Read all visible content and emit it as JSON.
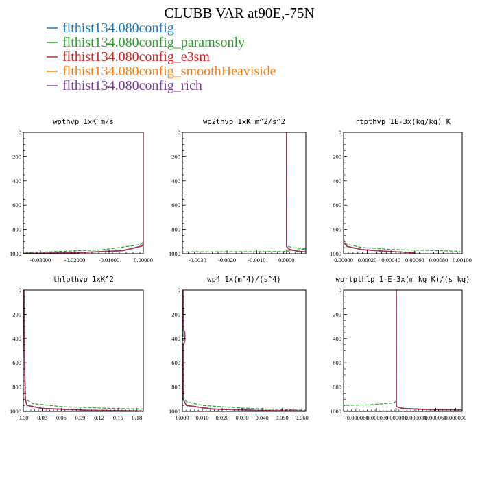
{
  "figure": {
    "title": "CLUBB VAR at90E,-75N"
  },
  "legend": [
    {
      "label": "flthist134.080config",
      "color": "#1f77b4",
      "dash": "solid"
    },
    {
      "label": "flthist134.080config_paramsonly",
      "color": "#2ca02c",
      "dash": "dashed"
    },
    {
      "label": "flthist134.080config_e3sm",
      "color": "#d62728",
      "dash": "solid"
    },
    {
      "label": "flthist134.080config_smoothHeaviside",
      "color": "#ff7f0e",
      "dash": "dashed"
    },
    {
      "label": "flthist134.080config_rich",
      "color": "#7b3f9e",
      "dash": "dotted"
    }
  ],
  "chart_data": [
    {
      "type": "line",
      "title": "wpthvp  1xK m/s",
      "xlim": [
        -0.035,
        0.0
      ],
      "ylim": [
        1000,
        0
      ],
      "xticks": [
        -0.03,
        -0.02,
        -0.01,
        0.0
      ],
      "xtick_labels": [
        "-0.03000",
        "-0.02000",
        "-0.01000",
        "0.00000"
      ],
      "yticks": [
        0,
        200,
        400,
        600,
        800,
        1000
      ],
      "ytick_labels": [
        "0",
        "200",
        "400",
        "600",
        "800",
        "1000"
      ],
      "series": [
        {
          "points": [
            [
              0,
              0
            ],
            [
              0,
              900
            ],
            [
              -0.0002,
              935
            ],
            [
              -0.006,
              975
            ],
            [
              -0.02,
              992
            ],
            [
              -0.035,
              998
            ]
          ]
        },
        {
          "points": [
            [
              0,
              0
            ],
            [
              0,
              900
            ],
            [
              -0.0008,
              925
            ],
            [
              -0.012,
              968
            ],
            [
              -0.028,
              985
            ],
            [
              -0.035,
              990
            ]
          ]
        },
        {
          "points": [
            [
              0,
              0
            ],
            [
              0,
              900
            ],
            [
              -0.0002,
              935
            ],
            [
              -0.006,
              975
            ],
            [
              -0.02,
              992
            ],
            [
              -0.035,
              998
            ]
          ]
        },
        {
          "points": [
            [
              0,
              0
            ],
            [
              0,
              900
            ],
            [
              -0.0002,
              935
            ],
            [
              -0.006,
              975
            ],
            [
              -0.02,
              992
            ],
            [
              -0.035,
              998
            ]
          ]
        },
        {
          "points": [
            [
              0,
              0
            ],
            [
              0,
              900
            ],
            [
              -0.0002,
              935
            ],
            [
              -0.006,
              975
            ],
            [
              -0.02,
              992
            ],
            [
              -0.035,
              998
            ]
          ]
        }
      ]
    },
    {
      "type": "line",
      "title": "wp2thvp  1xK m^2/s^2",
      "xlim": [
        -0.0035,
        0.00065
      ],
      "ylim": [
        1000,
        0
      ],
      "xticks": [
        -0.003,
        -0.002,
        -0.001,
        0.0
      ],
      "xtick_labels": [
        "-0.0030",
        "-0.0020",
        "-0.0010",
        "0.0000"
      ],
      "yticks": [
        0,
        200,
        400,
        600,
        800,
        1000
      ],
      "ytick_labels": [
        "0",
        "200",
        "400",
        "600",
        "800",
        "1000"
      ],
      "series": [
        {
          "points": [
            [
              0,
              0
            ],
            [
              0,
              940
            ],
            [
              0.0001,
              965
            ],
            [
              0.0004,
              980
            ],
            [
              0.00065,
              985
            ]
          ]
        },
        {
          "points": [
            [
              0,
              0
            ],
            [
              0,
              935
            ],
            [
              0.0002,
              950
            ],
            [
              0.00065,
              960
            ],
            [
              -0.0001,
              982
            ],
            [
              -0.0035,
              985
            ]
          ]
        },
        {
          "points": [
            [
              0,
              0
            ],
            [
              0,
              940
            ],
            [
              0.0001,
              965
            ],
            [
              0.0004,
              980
            ],
            [
              0.00065,
              985
            ]
          ]
        },
        {
          "points": [
            [
              0,
              0
            ],
            [
              0,
              940
            ],
            [
              0.0001,
              965
            ],
            [
              0.0004,
              980
            ],
            [
              0.00065,
              985
            ]
          ]
        },
        {
          "points": [
            [
              0,
              0
            ],
            [
              0,
              940
            ],
            [
              0.0001,
              965
            ],
            [
              0.0004,
              980
            ],
            [
              0.00065,
              985
            ]
          ]
        }
      ]
    },
    {
      "type": "line",
      "title": "rtpthvp  1E-3x(kg/kg) K",
      "xlim": [
        0.0,
        0.001
      ],
      "ylim": [
        1000,
        0
      ],
      "xticks": [
        0.0,
        0.0002,
        0.0004,
        0.0006,
        0.0008,
        0.001
      ],
      "xtick_labels": [
        "0.00000",
        "0.00020",
        "0.00040",
        "0.00060",
        "0.00080",
        "0.00100"
      ],
      "yticks": [
        0,
        200,
        400,
        600,
        800,
        1000
      ],
      "ytick_labels": [
        "0",
        "200",
        "400",
        "600",
        "800",
        "1000"
      ],
      "series": [
        {
          "points": [
            [
              0,
              0
            ],
            [
              0,
              910
            ],
            [
              3e-05,
              940
            ],
            [
              0.00015,
              965
            ],
            [
              0.00035,
              980
            ],
            [
              0.0006,
              992
            ]
          ]
        },
        {
          "points": [
            [
              0,
              0
            ],
            [
              0,
              880
            ],
            [
              2e-05,
              920
            ],
            [
              0.00015,
              948
            ],
            [
              0.0004,
              965
            ],
            [
              0.0008,
              975
            ],
            [
              0.00098,
              980
            ]
          ]
        },
        {
          "points": [
            [
              0,
              0
            ],
            [
              0,
              910
            ],
            [
              3e-05,
              940
            ],
            [
              0.00015,
              965
            ],
            [
              0.00035,
              980
            ],
            [
              0.0006,
              992
            ]
          ]
        },
        {
          "points": [
            [
              0,
              0
            ],
            [
              0,
              910
            ],
            [
              3e-05,
              940
            ],
            [
              0.00015,
              965
            ],
            [
              0.00035,
              980
            ],
            [
              0.0006,
              992
            ]
          ]
        },
        {
          "points": [
            [
              0,
              0
            ],
            [
              0,
              910
            ],
            [
              3e-05,
              940
            ],
            [
              0.00015,
              965
            ],
            [
              0.00035,
              980
            ],
            [
              0.0006,
              992
            ]
          ]
        }
      ]
    },
    {
      "type": "line",
      "title": "thlpthvp  1xK^2",
      "xlim": [
        0.0,
        0.19
      ],
      "ylim": [
        1000,
        0
      ],
      "xticks": [
        0.0,
        0.03,
        0.06,
        0.09,
        0.12,
        0.15,
        0.18
      ],
      "xtick_labels": [
        "0.00",
        "0.03",
        "0.06",
        "0.09",
        "0.12",
        "0.15",
        "0.18"
      ],
      "yticks": [
        0,
        200,
        400,
        600,
        800,
        1000
      ],
      "ytick_labels": [
        "0",
        "200",
        "400",
        "600",
        "800",
        "1000"
      ],
      "series": [
        {
          "points": [
            [
              0.001,
              0
            ],
            [
              0.002,
              600
            ],
            [
              0.003,
              900
            ],
            [
              0.006,
              950
            ],
            [
              0.03,
              975
            ],
            [
              0.1,
              990
            ],
            [
              0.19,
              997
            ]
          ]
        },
        {
          "points": [
            [
              0.001,
              0
            ],
            [
              0.002,
              600
            ],
            [
              0.004,
              900
            ],
            [
              0.015,
              935
            ],
            [
              0.06,
              960
            ],
            [
              0.14,
              975
            ],
            [
              0.19,
              980
            ]
          ]
        },
        {
          "points": [
            [
              0.001,
              0
            ],
            [
              0.002,
              600
            ],
            [
              0.003,
              900
            ],
            [
              0.006,
              950
            ],
            [
              0.03,
              975
            ],
            [
              0.1,
              990
            ],
            [
              0.19,
              997
            ]
          ]
        },
        {
          "points": [
            [
              0.001,
              0
            ],
            [
              0.002,
              600
            ],
            [
              0.003,
              900
            ],
            [
              0.006,
              950
            ],
            [
              0.03,
              975
            ],
            [
              0.1,
              990
            ],
            [
              0.19,
              997
            ]
          ]
        },
        {
          "points": [
            [
              0.001,
              0
            ],
            [
              0.002,
              600
            ],
            [
              0.003,
              900
            ],
            [
              0.006,
              950
            ],
            [
              0.03,
              975
            ],
            [
              0.1,
              990
            ],
            [
              0.19,
              997
            ]
          ]
        }
      ]
    },
    {
      "type": "line",
      "title": "wp4  1x(m^4)/(s^4)",
      "xlim": [
        0.0,
        0.062
      ],
      "ylim": [
        1000,
        0
      ],
      "xticks": [
        0.0,
        0.01,
        0.02,
        0.03,
        0.04,
        0.05,
        0.06
      ],
      "xtick_labels": [
        "0.000",
        "0.010",
        "0.020",
        "0.030",
        "0.040",
        "0.050",
        "0.060"
      ],
      "yticks": [
        0,
        200,
        400,
        600,
        800,
        1000
      ],
      "ytick_labels": [
        "0",
        "200",
        "400",
        "600",
        "800",
        "1000"
      ],
      "series": [
        {
          "points": [
            [
              0.0003,
              0
            ],
            [
              0.0005,
              320
            ],
            [
              0.0012,
              350
            ],
            [
              0.0012,
              420
            ],
            [
              0.0005,
              450
            ],
            [
              0.0004,
              900
            ],
            [
              0.002,
              950
            ],
            [
              0.015,
              980
            ],
            [
              0.04,
              992
            ],
            [
              0.062,
              997
            ]
          ]
        },
        {
          "points": [
            [
              0.0003,
              0
            ],
            [
              0.0005,
              880
            ],
            [
              0.002,
              920
            ],
            [
              0.01,
              950
            ],
            [
              0.03,
              972
            ],
            [
              0.05,
              985
            ],
            [
              0.062,
              990
            ]
          ]
        },
        {
          "points": [
            [
              0.0003,
              0
            ],
            [
              0.0005,
              320
            ],
            [
              0.0012,
              350
            ],
            [
              0.0012,
              420
            ],
            [
              0.0005,
              450
            ],
            [
              0.0004,
              900
            ],
            [
              0.002,
              950
            ],
            [
              0.015,
              980
            ],
            [
              0.04,
              992
            ],
            [
              0.062,
              997
            ]
          ]
        },
        {
          "points": [
            [
              0.0003,
              0
            ],
            [
              0.0005,
              320
            ],
            [
              0.0012,
              350
            ],
            [
              0.0012,
              420
            ],
            [
              0.0005,
              450
            ],
            [
              0.0004,
              900
            ],
            [
              0.002,
              950
            ],
            [
              0.015,
              980
            ],
            [
              0.04,
              992
            ],
            [
              0.062,
              997
            ]
          ]
        },
        {
          "points": [
            [
              0.0003,
              0
            ],
            [
              0.0005,
              320
            ],
            [
              0.0012,
              350
            ],
            [
              0.0012,
              420
            ],
            [
              0.0005,
              450
            ],
            [
              0.0004,
              900
            ],
            [
              0.002,
              950
            ],
            [
              0.015,
              980
            ],
            [
              0.04,
              992
            ],
            [
              0.062,
              997
            ]
          ]
        }
      ]
    },
    {
      "type": "line",
      "title": "wprtpthlp  1-E-3x(m kg K)/(s kg)",
      "xlim": [
        -8e-05,
        0.0001
      ],
      "ylim": [
        1000,
        0
      ],
      "xticks": [
        -6e-05,
        -3e-05,
        0.0,
        3e-05,
        6e-05,
        9e-05
      ],
      "xtick_labels": [
        "-0.000060",
        "-0.000030",
        "0.000000",
        "0.000030",
        "0.000060",
        "0.000090"
      ],
      "yticks": [
        0,
        200,
        400,
        600,
        800,
        1000
      ],
      "ytick_labels": [
        "0",
        "200",
        "400",
        "600",
        "800",
        "1000"
      ],
      "series": [
        {
          "points": [
            [
              0,
              0
            ],
            [
              0,
              960
            ],
            [
              1e-05,
              975
            ],
            [
              5e-05,
              985
            ],
            [
              0.0001,
              988
            ]
          ]
        },
        {
          "points": [
            [
              0,
              0
            ],
            [
              0,
              915
            ],
            [
              -5e-06,
              930
            ],
            [
              -4e-05,
              945
            ],
            [
              -8e-05,
              950
            ]
          ]
        },
        {
          "points": [
            [
              0,
              0
            ],
            [
              0,
              960
            ],
            [
              1e-05,
              975
            ],
            [
              5e-05,
              985
            ],
            [
              0.0001,
              988
            ]
          ]
        },
        {
          "points": [
            [
              0,
              0
            ],
            [
              0,
              960
            ],
            [
              1e-05,
              975
            ],
            [
              5e-05,
              985
            ],
            [
              0.0001,
              988
            ]
          ]
        },
        {
          "points": [
            [
              0,
              0
            ],
            [
              0,
              960
            ],
            [
              1e-05,
              975
            ],
            [
              5e-05,
              985
            ],
            [
              0.0001,
              988
            ]
          ]
        }
      ]
    }
  ]
}
